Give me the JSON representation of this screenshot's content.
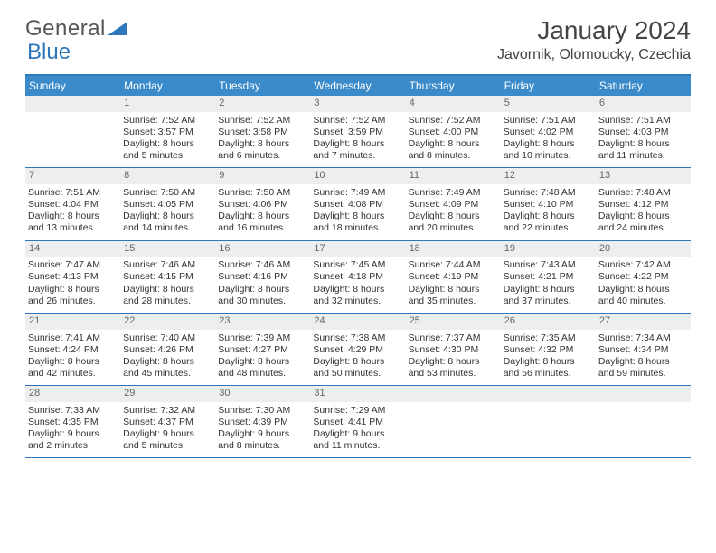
{
  "brand": {
    "part1": "General",
    "part2": "Blue"
  },
  "title": "January 2024",
  "location": "Javornik, Olomoucky, Czechia",
  "colors": {
    "header_blue": "#3b8bca",
    "rule_blue": "#2e77bb",
    "daynum_bg": "#eceef0",
    "text": "#333333",
    "brand_text": "#555555",
    "brand_blue": "#2e77bb"
  },
  "day_names": [
    "Sunday",
    "Monday",
    "Tuesday",
    "Wednesday",
    "Thursday",
    "Friday",
    "Saturday"
  ],
  "weeks": [
    [
      {
        "blank": true
      },
      {
        "day": "1",
        "sunrise": "Sunrise: 7:52 AM",
        "sunset": "Sunset: 3:57 PM",
        "dl1": "Daylight: 8 hours",
        "dl2": "and 5 minutes."
      },
      {
        "day": "2",
        "sunrise": "Sunrise: 7:52 AM",
        "sunset": "Sunset: 3:58 PM",
        "dl1": "Daylight: 8 hours",
        "dl2": "and 6 minutes."
      },
      {
        "day": "3",
        "sunrise": "Sunrise: 7:52 AM",
        "sunset": "Sunset: 3:59 PM",
        "dl1": "Daylight: 8 hours",
        "dl2": "and 7 minutes."
      },
      {
        "day": "4",
        "sunrise": "Sunrise: 7:52 AM",
        "sunset": "Sunset: 4:00 PM",
        "dl1": "Daylight: 8 hours",
        "dl2": "and 8 minutes."
      },
      {
        "day": "5",
        "sunrise": "Sunrise: 7:51 AM",
        "sunset": "Sunset: 4:02 PM",
        "dl1": "Daylight: 8 hours",
        "dl2": "and 10 minutes."
      },
      {
        "day": "6",
        "sunrise": "Sunrise: 7:51 AM",
        "sunset": "Sunset: 4:03 PM",
        "dl1": "Daylight: 8 hours",
        "dl2": "and 11 minutes."
      }
    ],
    [
      {
        "day": "7",
        "sunrise": "Sunrise: 7:51 AM",
        "sunset": "Sunset: 4:04 PM",
        "dl1": "Daylight: 8 hours",
        "dl2": "and 13 minutes."
      },
      {
        "day": "8",
        "sunrise": "Sunrise: 7:50 AM",
        "sunset": "Sunset: 4:05 PM",
        "dl1": "Daylight: 8 hours",
        "dl2": "and 14 minutes."
      },
      {
        "day": "9",
        "sunrise": "Sunrise: 7:50 AM",
        "sunset": "Sunset: 4:06 PM",
        "dl1": "Daylight: 8 hours",
        "dl2": "and 16 minutes."
      },
      {
        "day": "10",
        "sunrise": "Sunrise: 7:49 AM",
        "sunset": "Sunset: 4:08 PM",
        "dl1": "Daylight: 8 hours",
        "dl2": "and 18 minutes."
      },
      {
        "day": "11",
        "sunrise": "Sunrise: 7:49 AM",
        "sunset": "Sunset: 4:09 PM",
        "dl1": "Daylight: 8 hours",
        "dl2": "and 20 minutes."
      },
      {
        "day": "12",
        "sunrise": "Sunrise: 7:48 AM",
        "sunset": "Sunset: 4:10 PM",
        "dl1": "Daylight: 8 hours",
        "dl2": "and 22 minutes."
      },
      {
        "day": "13",
        "sunrise": "Sunrise: 7:48 AM",
        "sunset": "Sunset: 4:12 PM",
        "dl1": "Daylight: 8 hours",
        "dl2": "and 24 minutes."
      }
    ],
    [
      {
        "day": "14",
        "sunrise": "Sunrise: 7:47 AM",
        "sunset": "Sunset: 4:13 PM",
        "dl1": "Daylight: 8 hours",
        "dl2": "and 26 minutes."
      },
      {
        "day": "15",
        "sunrise": "Sunrise: 7:46 AM",
        "sunset": "Sunset: 4:15 PM",
        "dl1": "Daylight: 8 hours",
        "dl2": "and 28 minutes."
      },
      {
        "day": "16",
        "sunrise": "Sunrise: 7:46 AM",
        "sunset": "Sunset: 4:16 PM",
        "dl1": "Daylight: 8 hours",
        "dl2": "and 30 minutes."
      },
      {
        "day": "17",
        "sunrise": "Sunrise: 7:45 AM",
        "sunset": "Sunset: 4:18 PM",
        "dl1": "Daylight: 8 hours",
        "dl2": "and 32 minutes."
      },
      {
        "day": "18",
        "sunrise": "Sunrise: 7:44 AM",
        "sunset": "Sunset: 4:19 PM",
        "dl1": "Daylight: 8 hours",
        "dl2": "and 35 minutes."
      },
      {
        "day": "19",
        "sunrise": "Sunrise: 7:43 AM",
        "sunset": "Sunset: 4:21 PM",
        "dl1": "Daylight: 8 hours",
        "dl2": "and 37 minutes."
      },
      {
        "day": "20",
        "sunrise": "Sunrise: 7:42 AM",
        "sunset": "Sunset: 4:22 PM",
        "dl1": "Daylight: 8 hours",
        "dl2": "and 40 minutes."
      }
    ],
    [
      {
        "day": "21",
        "sunrise": "Sunrise: 7:41 AM",
        "sunset": "Sunset: 4:24 PM",
        "dl1": "Daylight: 8 hours",
        "dl2": "and 42 minutes."
      },
      {
        "day": "22",
        "sunrise": "Sunrise: 7:40 AM",
        "sunset": "Sunset: 4:26 PM",
        "dl1": "Daylight: 8 hours",
        "dl2": "and 45 minutes."
      },
      {
        "day": "23",
        "sunrise": "Sunrise: 7:39 AM",
        "sunset": "Sunset: 4:27 PM",
        "dl1": "Daylight: 8 hours",
        "dl2": "and 48 minutes."
      },
      {
        "day": "24",
        "sunrise": "Sunrise: 7:38 AM",
        "sunset": "Sunset: 4:29 PM",
        "dl1": "Daylight: 8 hours",
        "dl2": "and 50 minutes."
      },
      {
        "day": "25",
        "sunrise": "Sunrise: 7:37 AM",
        "sunset": "Sunset: 4:30 PM",
        "dl1": "Daylight: 8 hours",
        "dl2": "and 53 minutes."
      },
      {
        "day": "26",
        "sunrise": "Sunrise: 7:35 AM",
        "sunset": "Sunset: 4:32 PM",
        "dl1": "Daylight: 8 hours",
        "dl2": "and 56 minutes."
      },
      {
        "day": "27",
        "sunrise": "Sunrise: 7:34 AM",
        "sunset": "Sunset: 4:34 PM",
        "dl1": "Daylight: 8 hours",
        "dl2": "and 59 minutes."
      }
    ],
    [
      {
        "day": "28",
        "sunrise": "Sunrise: 7:33 AM",
        "sunset": "Sunset: 4:35 PM",
        "dl1": "Daylight: 9 hours",
        "dl2": "and 2 minutes."
      },
      {
        "day": "29",
        "sunrise": "Sunrise: 7:32 AM",
        "sunset": "Sunset: 4:37 PM",
        "dl1": "Daylight: 9 hours",
        "dl2": "and 5 minutes."
      },
      {
        "day": "30",
        "sunrise": "Sunrise: 7:30 AM",
        "sunset": "Sunset: 4:39 PM",
        "dl1": "Daylight: 9 hours",
        "dl2": "and 8 minutes."
      },
      {
        "day": "31",
        "sunrise": "Sunrise: 7:29 AM",
        "sunset": "Sunset: 4:41 PM",
        "dl1": "Daylight: 9 hours",
        "dl2": "and 11 minutes."
      },
      {
        "blank": true
      },
      {
        "blank": true
      },
      {
        "blank": true
      }
    ]
  ]
}
